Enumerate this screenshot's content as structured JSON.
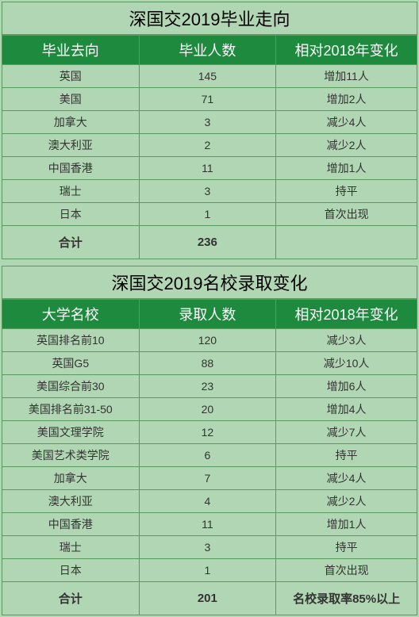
{
  "table1": {
    "title": "深国交2019毕业走向",
    "headers": [
      "毕业去向",
      "毕业人数",
      "相对2018年变化"
    ],
    "rows": [
      [
        "英国",
        "145",
        "增加11人"
      ],
      [
        "美国",
        "71",
        "增加2人"
      ],
      [
        "加拿大",
        "3",
        "减少4人"
      ],
      [
        "澳大利亚",
        "2",
        "减少2人"
      ],
      [
        "中国香港",
        "11",
        "增加1人"
      ],
      [
        "瑞士",
        "3",
        "持平"
      ],
      [
        "日本",
        "1",
        "首次出现"
      ]
    ],
    "total": [
      "合计",
      "236",
      ""
    ]
  },
  "table2": {
    "title": "深国交2019名校录取变化",
    "headers": [
      "大学名校",
      "录取人数",
      "相对2018年变化"
    ],
    "rows": [
      [
        "英国排名前10",
        "120",
        "减少3人"
      ],
      [
        "英国G5",
        "88",
        "减少10人"
      ],
      [
        "美国综合前30",
        "23",
        "增加6人"
      ],
      [
        "美国排名前31-50",
        "20",
        "增加4人"
      ],
      [
        "美国文理学院",
        "12",
        "减少7人"
      ],
      [
        "美国艺术类学院",
        "6",
        "持平"
      ],
      [
        "加拿大",
        "7",
        "减少4人"
      ],
      [
        "澳大利亚",
        "4",
        "减少2人"
      ],
      [
        "中国香港",
        "11",
        "增加1人"
      ],
      [
        "瑞士",
        "3",
        "持平"
      ],
      [
        "日本",
        "1",
        "首次出现"
      ]
    ],
    "total": [
      "合计",
      "201",
      "名校录取率85%以上"
    ]
  }
}
